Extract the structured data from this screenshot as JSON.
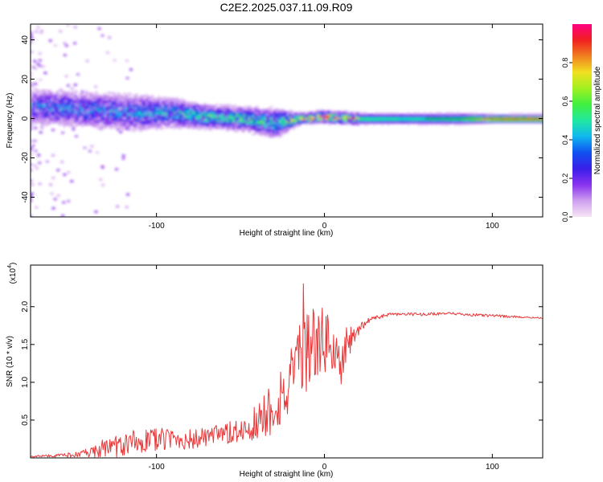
{
  "title": "C2E2.2025.037.11.09.R09",
  "colors": {
    "background": "#ffffff",
    "axis": "#000000",
    "snr_line": "#e8383a",
    "colormap": [
      "#f6e6f6",
      "#cfa0ee",
      "#8a32f0",
      "#3a1ee8",
      "#1050f0",
      "#10b8f0",
      "#20e8a0",
      "#40f040",
      "#a0f020",
      "#f0e020",
      "#f08020",
      "#f02020",
      "#ff0080"
    ]
  },
  "chart_data": [
    {
      "type": "heatmap",
      "title": "",
      "xlabel": "Height of straight line (km)",
      "ylabel": "Frequency (Hz)",
      "xlim": [
        -175,
        130
      ],
      "ylim": [
        -50,
        48
      ],
      "xticks": [
        -100,
        0,
        100
      ],
      "xtick_labels": [
        "-100",
        "0",
        "100"
      ],
      "yticks": [
        -40,
        -20,
        0,
        20,
        40
      ],
      "ytick_labels": [
        "-40",
        "-20",
        "0",
        "20",
        "40"
      ],
      "grid": false,
      "colorbar": {
        "label": "Normalized spectral amplitude",
        "range": [
          0,
          1
        ],
        "ticks": [
          0.0,
          0.2,
          0.4,
          0.6,
          0.8
        ],
        "tick_labels": [
          "0.0",
          "0.2",
          "0.4",
          "0.6",
          "0.8"
        ]
      },
      "ridge": [
        {
          "x": -170,
          "center": 6,
          "half_width": 6,
          "amplitude": 0.28
        },
        {
          "x": -150,
          "center": 5,
          "half_width": 6,
          "amplitude": 0.3
        },
        {
          "x": -130,
          "center": 4,
          "half_width": 6,
          "amplitude": 0.3
        },
        {
          "x": -110,
          "center": 3,
          "half_width": 6,
          "amplitude": 0.32
        },
        {
          "x": -90,
          "center": 3,
          "half_width": 5,
          "amplitude": 0.33
        },
        {
          "x": -70,
          "center": 1,
          "half_width": 4,
          "amplitude": 0.4
        },
        {
          "x": -50,
          "center": 0,
          "half_width": 4,
          "amplitude": 0.42
        },
        {
          "x": -30,
          "center": -2,
          "half_width": 5,
          "amplitude": 0.38
        },
        {
          "x": -15,
          "center": 0,
          "half_width": 2,
          "amplitude": 0.55
        },
        {
          "x": 0,
          "center": 1,
          "half_width": 2,
          "amplitude": 0.7
        },
        {
          "x": 20,
          "center": 0,
          "half_width": 2,
          "amplitude": 0.55
        },
        {
          "x": 50,
          "center": 0,
          "half_width": 2,
          "amplitude": 0.5
        },
        {
          "x": 80,
          "center": 0,
          "half_width": 2,
          "amplitude": 0.55
        },
        {
          "x": 100,
          "center": 0,
          "half_width": 1.5,
          "amplitude": 0.85
        },
        {
          "x": 130,
          "center": 0,
          "half_width": 1.5,
          "amplitude": 0.9
        }
      ]
    },
    {
      "type": "line",
      "title": "",
      "xlabel": "Height of straight line (km)",
      "ylabel": "SNR (10 * v/v)",
      "y_multiplier_label": "(x10",
      "y_multiplier_exponent": "4",
      "xlim": [
        -175,
        130
      ],
      "ylim": [
        0,
        2.55
      ],
      "xticks": [
        -100,
        0,
        100
      ],
      "xtick_labels": [
        "-100",
        "0",
        "100"
      ],
      "yticks": [
        0.5,
        1.0,
        1.5,
        2.0
      ],
      "ytick_labels": [
        "0.5",
        "1.0",
        "1.5",
        "2.0"
      ],
      "grid": false,
      "series": [
        {
          "x": [
            -175,
            -160,
            -145,
            -130,
            -120,
            -110,
            -100,
            -90,
            -80,
            -70,
            -60,
            -50,
            -45,
            -40,
            -35,
            -30,
            -25,
            -20,
            -18,
            -15,
            -12,
            -10,
            -8,
            -5,
            0,
            5,
            8,
            10,
            12,
            15,
            20,
            25,
            30,
            40,
            50,
            60,
            70,
            80,
            90,
            100,
            110,
            120,
            130
          ],
          "y": [
            0.02,
            0.03,
            0.05,
            0.1,
            0.18,
            0.22,
            0.24,
            0.25,
            0.24,
            0.27,
            0.3,
            0.35,
            0.42,
            0.48,
            0.58,
            0.7,
            0.85,
            0.95,
            1.05,
            1.12,
            1.3,
            1.45,
            1.55,
            1.5,
            1.55,
            1.48,
            1.3,
            1.1,
            1.4,
            1.55,
            1.68,
            1.8,
            1.85,
            1.9,
            1.9,
            1.9,
            1.91,
            1.9,
            1.89,
            1.88,
            1.87,
            1.86,
            1.85
          ],
          "noise": [
            0.01,
            0.02,
            0.04,
            0.12,
            0.18,
            0.16,
            0.16,
            0.14,
            0.14,
            0.14,
            0.15,
            0.18,
            0.22,
            0.28,
            0.35,
            0.4,
            0.45,
            0.5,
            0.5,
            0.55,
            0.6,
            0.65,
            0.55,
            0.45,
            0.45,
            0.4,
            0.4,
            0.4,
            0.35,
            0.2,
            0.08,
            0.04,
            0.03,
            0.02,
            0.02,
            0.02,
            0.02,
            0.02,
            0.02,
            0.02,
            0.015,
            0.01,
            0.01
          ]
        }
      ]
    }
  ]
}
